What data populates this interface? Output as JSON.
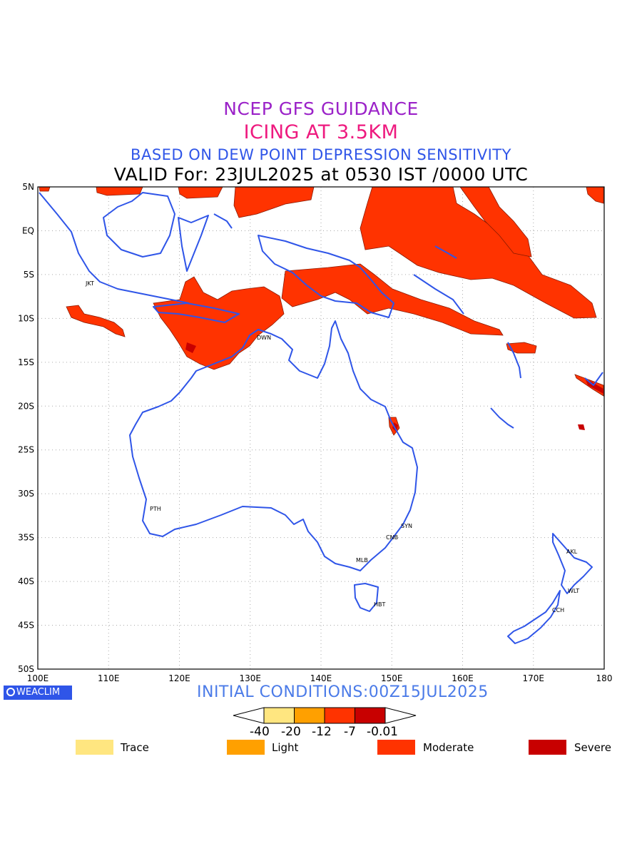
{
  "titles": {
    "line1": "NCEP GFS GUIDANCE",
    "line2": "ICING AT 3.5KM",
    "line3": "BASED ON DEW POINT DEPRESSION SENSITIVITY",
    "line4": "VALID For: 23JUL2025 at 0530 IST /0000 UTC"
  },
  "map": {
    "lat_labels": [
      "5N",
      "EQ",
      "5S",
      "10S",
      "15S",
      "20S",
      "25S",
      "30S",
      "35S",
      "40S",
      "45S",
      "50S"
    ],
    "lon_labels": [
      "100E",
      "110E",
      "120E",
      "130E",
      "140E",
      "150E",
      "160E",
      "170E",
      "180"
    ],
    "cities": [
      {
        "code": "JKT"
      },
      {
        "code": "DWN"
      },
      {
        "code": "PTH"
      },
      {
        "code": "SYN"
      },
      {
        "code": "CNB"
      },
      {
        "code": "MLB"
      },
      {
        "code": "HBT"
      },
      {
        "code": "AKL"
      },
      {
        "code": "WLT"
      },
      {
        "code": "CCH"
      }
    ],
    "colors": {
      "coast": "#2f55e8",
      "grid": "#aaaaaa",
      "moderate": "#ff3300",
      "severe": "#cc0000"
    }
  },
  "branding": {
    "weaclim": "WEACLIM"
  },
  "initial": "INITIAL CONDITIONS:00Z15JUL2025",
  "colorbar": {
    "colors": [
      "#ffe680",
      "#ffa000",
      "#ff3300",
      "#c80000"
    ],
    "ticks": [
      "-40",
      "-20",
      "-12",
      "-7",
      "-0.01"
    ]
  },
  "legend": [
    {
      "label": "Trace",
      "color": "#ffe680"
    },
    {
      "label": "Light",
      "color": "#ffa000"
    },
    {
      "label": "Moderate",
      "color": "#ff3300"
    },
    {
      "label": "Severe",
      "color": "#c80000"
    }
  ]
}
